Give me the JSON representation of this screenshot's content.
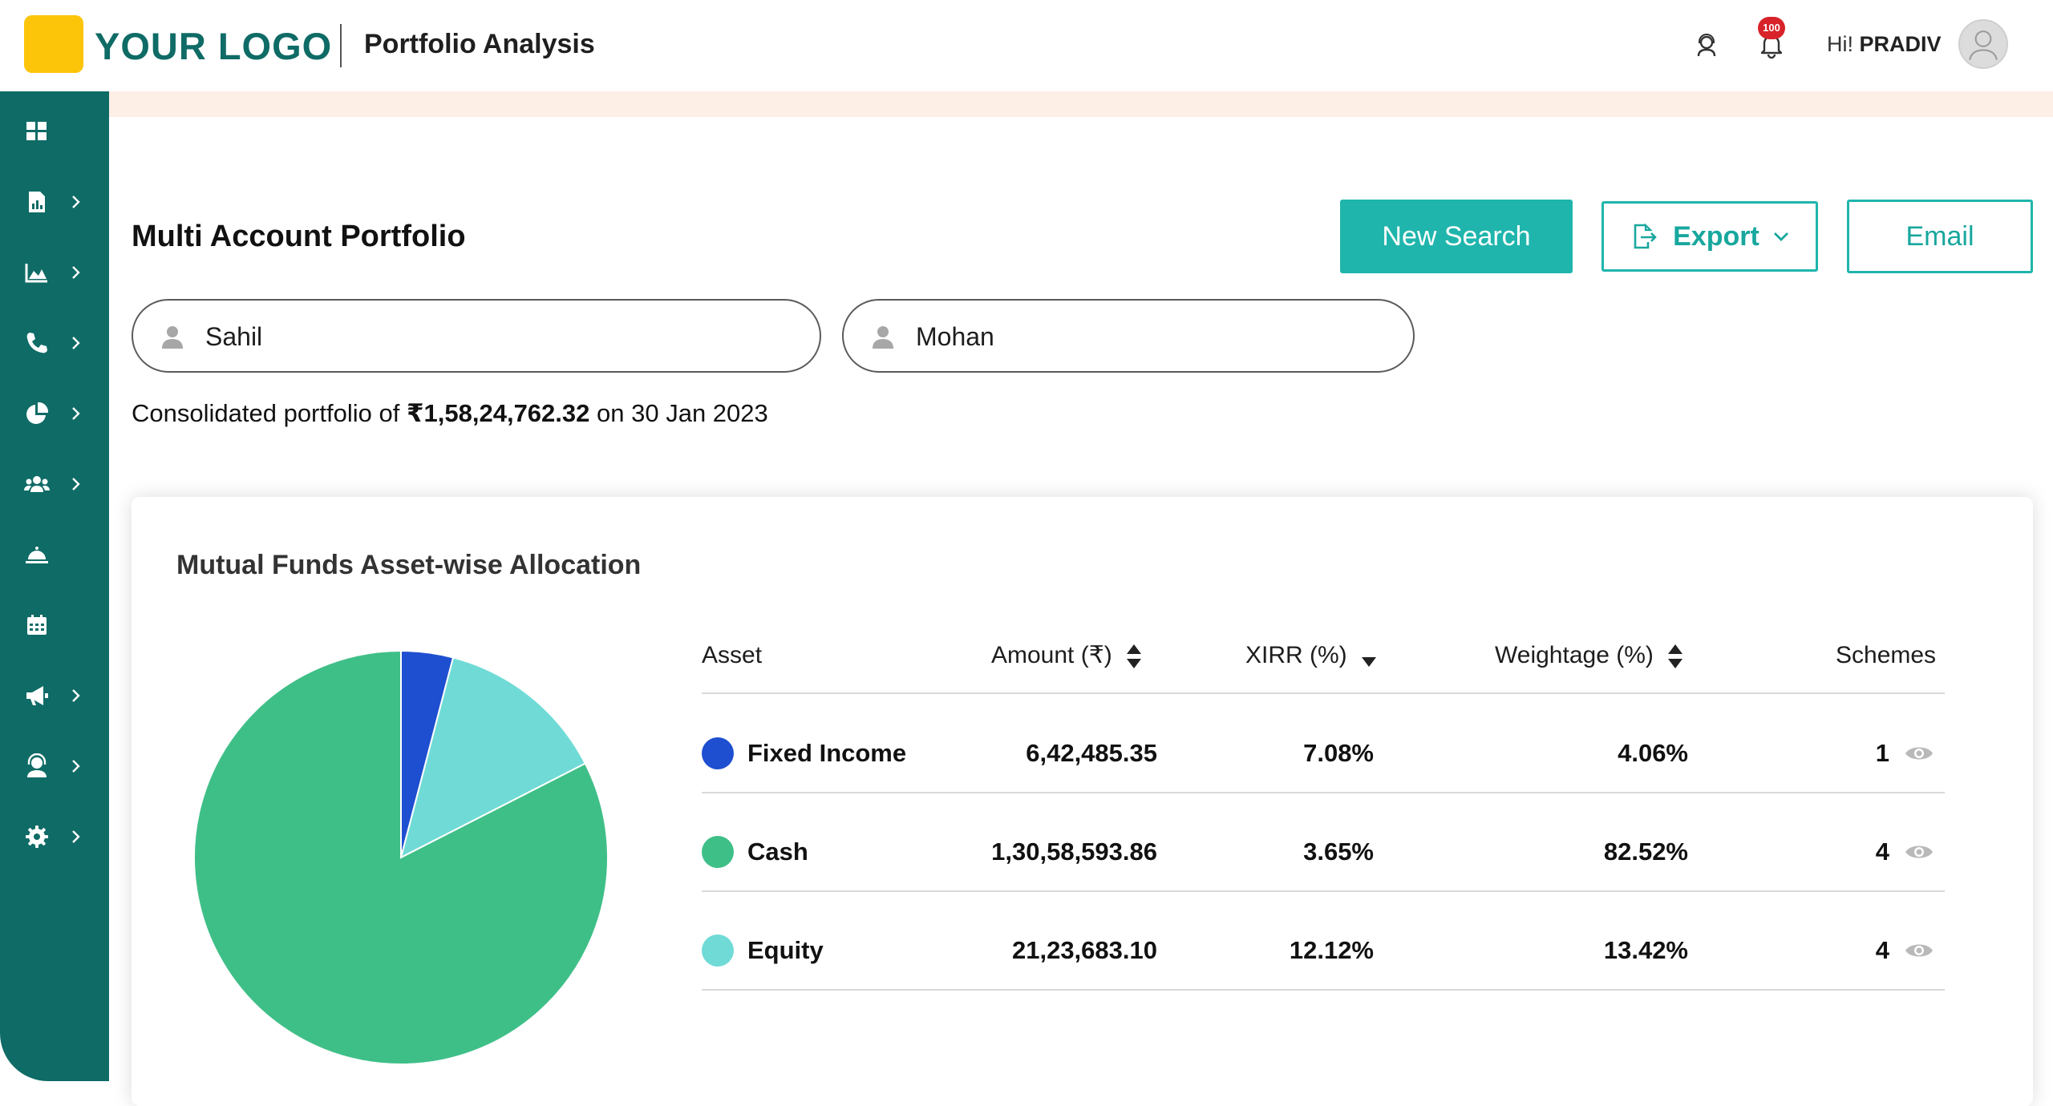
{
  "header": {
    "logo_text": "YOUR LOGO",
    "page_title": "Portfolio Analysis",
    "notification_count": "100",
    "greeting_prefix": "Hi!",
    "user_name": "PRADIV",
    "icons": [
      "support-icon",
      "bell-icon",
      "avatar"
    ]
  },
  "sidebar": {
    "items": [
      {
        "name": "dashboard",
        "icon": "grid-icon",
        "has_submenu": false
      },
      {
        "name": "reports",
        "icon": "report-icon",
        "has_submenu": true
      },
      {
        "name": "analytics",
        "icon": "area-chart-icon",
        "has_submenu": true
      },
      {
        "name": "calls",
        "icon": "phone-icon",
        "has_submenu": true
      },
      {
        "name": "portfolio",
        "icon": "pie-chart-icon",
        "has_submenu": true
      },
      {
        "name": "clients",
        "icon": "users-icon",
        "has_submenu": true
      },
      {
        "name": "services",
        "icon": "bell-desk-icon",
        "has_submenu": false
      },
      {
        "name": "calendar",
        "icon": "calendar-icon",
        "has_submenu": false
      },
      {
        "name": "campaigns",
        "icon": "megaphone-icon",
        "has_submenu": true
      },
      {
        "name": "support",
        "icon": "headset-icon",
        "has_submenu": true
      },
      {
        "name": "settings",
        "icon": "gear-icon",
        "has_submenu": true
      }
    ]
  },
  "main": {
    "section_title": "Multi Account Portfolio",
    "buttons": {
      "new_search": "New Search",
      "export": "Export",
      "email": "Email"
    },
    "accounts": [
      "Sahil",
      "Mohan"
    ],
    "summary": {
      "prefix": "Consolidated portfolio of",
      "amount": "₹1,58,24,762.32",
      "suffix": "on 30 Jan 2023"
    },
    "card": {
      "title": "Mutual Funds Asset-wise Allocation",
      "table": {
        "headers": {
          "asset": "Asset",
          "amount": "Amount (₹)",
          "xirr": "XIRR (%)",
          "weightage": "Weightage (%)",
          "schemes": "Schemes"
        },
        "rows": [
          {
            "asset": "Fixed Income",
            "amount": "6,42,485.35",
            "xirr": "7.08%",
            "weightage": "4.06%",
            "schemes": "1",
            "color": "#1e4fd0"
          },
          {
            "asset": "Cash",
            "amount": "1,30,58,593.86",
            "xirr": "3.65%",
            "weightage": "82.52%",
            "schemes": "4",
            "color": "#3fbf88"
          },
          {
            "asset": "Equity",
            "amount": "21,23,683.10",
            "xirr": "12.12%",
            "weightage": "13.42%",
            "schemes": "4",
            "color": "#70dbd6"
          }
        ]
      }
    }
  },
  "chart_data": {
    "type": "pie",
    "categories": [
      "Fixed Income",
      "Equity",
      "Cash"
    ],
    "values": [
      4.06,
      13.42,
      82.52
    ],
    "colors": [
      "#1e4fd0",
      "#70dbd6",
      "#3fbf88"
    ],
    "start_angle_deg": 0,
    "direction": "clockwise"
  }
}
